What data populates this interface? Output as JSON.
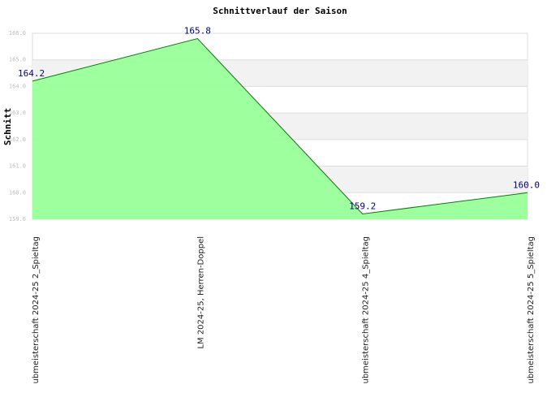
{
  "chart_data": {
    "type": "area",
    "title": "Schnittverlauf der Saison",
    "y_label": "Schnitt",
    "categories": [
      "ubmeisterschaft 2024-25  2_Spieltag",
      "LM 2024-25, Herren-Doppel",
      "ubmeisterschaft 2024-25  4_Spieltag",
      "ubmeisterschaft 2024-25  5_Spieltag"
    ],
    "values": [
      164.2,
      165.8,
      159.2,
      160.0
    ],
    "value_labels": [
      "164.2",
      "165.8",
      "159.2",
      "160.0"
    ],
    "color": "#008000",
    "fill": "#99ff99",
    "ylim": [
      159.0,
      166.0
    ],
    "yticks": [
      {
        "value": 159,
        "label": "159.0"
      },
      {
        "value": 160,
        "label": "160.0"
      },
      {
        "value": 161,
        "label": "161.0"
      },
      {
        "value": 162,
        "label": "162.0"
      },
      {
        "value": 163,
        "label": "163.0"
      },
      {
        "value": 164,
        "label": "164.0"
      },
      {
        "value": 165,
        "label": "165.0"
      },
      {
        "value": 166,
        "label": "166.0"
      }
    ],
    "grid": true
  }
}
